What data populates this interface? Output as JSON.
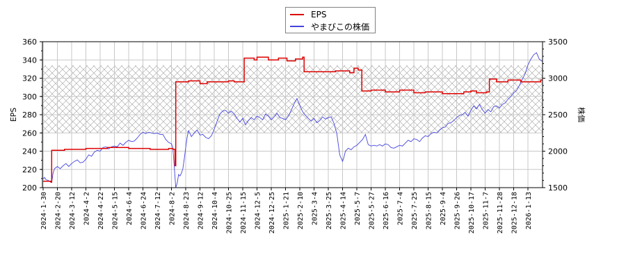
{
  "legend": {
    "items": [
      {
        "label": "EPS",
        "color": "#dd0000"
      },
      {
        "label": "やまびこの株価",
        "color": "#4444dd"
      }
    ]
  },
  "chart_data": {
    "type": "line",
    "title": "",
    "xlabel": "",
    "ylabel_left": "EPS",
    "ylabel_right": "株価",
    "ylim_left": [
      200,
      360
    ],
    "ylim_right": [
      1500,
      3500
    ],
    "yticks_left": [
      200,
      220,
      240,
      260,
      280,
      300,
      320,
      340,
      360
    ],
    "yticks_right": [
      1500,
      2000,
      2500,
      3000,
      3500
    ],
    "grid": true,
    "legend_position": "top-center",
    "shaded_band_eps": [
      260,
      334
    ],
    "x_tick_labels": [
      "2024-1-30",
      "2024-2-20",
      "2024-3-12",
      "2024-4-2",
      "2024-4-22",
      "2024-5-15",
      "2024-6-4",
      "2024-6-24",
      "2024-7-12",
      "2024-8-2",
      "2024-8-23",
      "2024-9-12",
      "2024-10-4",
      "2024-10-25",
      "2024-11-15",
      "2024-12-5",
      "2024-12-25",
      "2025-1-21",
      "2025-2-10",
      "2025-3-4",
      "2025-3-25",
      "2025-4-14",
      "2025-5-7",
      "2025-5-27",
      "2025-6-16",
      "2025-7-4",
      "2025-7-25",
      "2025-8-15",
      "2025-9-4",
      "2025-9-26",
      "2025-10-17",
      "2025-11-7",
      "2025-11-28",
      "2025-12-18",
      "2026-1-13"
    ],
    "series": [
      {
        "name": "EPS",
        "axis": "left",
        "color": "#dd0000",
        "points_x_index_eps": [
          [
            0,
            207
          ],
          [
            0.55,
            207
          ],
          [
            0.55,
            206
          ],
          [
            0.6,
            206
          ],
          [
            0.6,
            241
          ],
          [
            1.5,
            241
          ],
          [
            1.5,
            242
          ],
          [
            3,
            242
          ],
          [
            3,
            243
          ],
          [
            4.5,
            243
          ],
          [
            4.5,
            244
          ],
          [
            6,
            244
          ],
          [
            6,
            243
          ],
          [
            7.5,
            243
          ],
          [
            7.5,
            242
          ],
          [
            8.8,
            242
          ],
          [
            8.8,
            243
          ],
          [
            9.1,
            243
          ],
          [
            9.1,
            242
          ],
          [
            9.25,
            242
          ],
          [
            9.25,
            224
          ],
          [
            9.3,
            224
          ],
          [
            9.3,
            316
          ],
          [
            10.2,
            316
          ],
          [
            10.2,
            317
          ],
          [
            11,
            317
          ],
          [
            11,
            314
          ],
          [
            11.5,
            314
          ],
          [
            11.5,
            316
          ],
          [
            13,
            316
          ],
          [
            13,
            317
          ],
          [
            13.4,
            317
          ],
          [
            13.4,
            316
          ],
          [
            14.1,
            316
          ],
          [
            14.1,
            342
          ],
          [
            14.8,
            342
          ],
          [
            14.8,
            340
          ],
          [
            15.0,
            340
          ],
          [
            15.0,
            343
          ],
          [
            15.8,
            343
          ],
          [
            15.8,
            340
          ],
          [
            16.5,
            340
          ],
          [
            16.5,
            342
          ],
          [
            17.1,
            342
          ],
          [
            17.1,
            339
          ],
          [
            17.7,
            339
          ],
          [
            17.7,
            341
          ],
          [
            18.2,
            341
          ],
          [
            18.2,
            343
          ],
          [
            18.3,
            343
          ],
          [
            18.3,
            327
          ],
          [
            20.5,
            327
          ],
          [
            20.5,
            328
          ],
          [
            21.5,
            328
          ],
          [
            21.5,
            326
          ],
          [
            21.8,
            326
          ],
          [
            21.8,
            331
          ],
          [
            22.1,
            331
          ],
          [
            22.1,
            329
          ],
          [
            22.35,
            329
          ],
          [
            22.35,
            306
          ],
          [
            23,
            306
          ],
          [
            23,
            307
          ],
          [
            24,
            307
          ],
          [
            24,
            305
          ],
          [
            25,
            305
          ],
          [
            25,
            307
          ],
          [
            26,
            307
          ],
          [
            26,
            304
          ],
          [
            26.8,
            304
          ],
          [
            26.8,
            305
          ],
          [
            28,
            305
          ],
          [
            28,
            303
          ],
          [
            29.5,
            303
          ],
          [
            29.5,
            305
          ],
          [
            30,
            305
          ],
          [
            30,
            306
          ],
          [
            30.4,
            306
          ],
          [
            30.4,
            304
          ],
          [
            31.1,
            304
          ],
          [
            31.1,
            305
          ],
          [
            31.3,
            305
          ],
          [
            31.3,
            319
          ],
          [
            31.8,
            319
          ],
          [
            31.8,
            316
          ],
          [
            32.6,
            316
          ],
          [
            32.6,
            318
          ],
          [
            33.5,
            318
          ],
          [
            33.5,
            316
          ],
          [
            34.9,
            316
          ],
          [
            34.9,
            318
          ],
          [
            35.1,
            318
          ]
        ]
      },
      {
        "name": "やまびこの株価",
        "axis": "right",
        "color": "#4444dd",
        "points_x_index_price": [
          [
            0,
            1620
          ],
          [
            0.1,
            1640
          ],
          [
            0.2,
            1610
          ],
          [
            0.35,
            1600
          ],
          [
            0.5,
            1580
          ],
          [
            0.6,
            1570
          ],
          [
            0.7,
            1700
          ],
          [
            0.8,
            1760
          ],
          [
            1.0,
            1790
          ],
          [
            1.2,
            1760
          ],
          [
            1.4,
            1800
          ],
          [
            1.6,
            1830
          ],
          [
            1.8,
            1790
          ],
          [
            2.0,
            1830
          ],
          [
            2.2,
            1860
          ],
          [
            2.4,
            1880
          ],
          [
            2.6,
            1840
          ],
          [
            2.8,
            1850
          ],
          [
            3.0,
            1890
          ],
          [
            3.2,
            1950
          ],
          [
            3.4,
            1930
          ],
          [
            3.6,
            1990
          ],
          [
            3.8,
            2010
          ],
          [
            4.0,
            2000
          ],
          [
            4.2,
            2050
          ],
          [
            4.4,
            2060
          ],
          [
            4.6,
            2030
          ],
          [
            4.8,
            2060
          ],
          [
            5.0,
            2070
          ],
          [
            5.2,
            2060
          ],
          [
            5.4,
            2110
          ],
          [
            5.6,
            2080
          ],
          [
            5.8,
            2120
          ],
          [
            6.0,
            2150
          ],
          [
            6.2,
            2130
          ],
          [
            6.4,
            2140
          ],
          [
            6.6,
            2180
          ],
          [
            6.8,
            2230
          ],
          [
            7.0,
            2260
          ],
          [
            7.2,
            2240
          ],
          [
            7.4,
            2260
          ],
          [
            7.6,
            2250
          ],
          [
            7.8,
            2240
          ],
          [
            8.0,
            2250
          ],
          [
            8.2,
            2230
          ],
          [
            8.4,
            2230
          ],
          [
            8.6,
            2160
          ],
          [
            8.8,
            2120
          ],
          [
            9.0,
            2100
          ],
          [
            9.1,
            2050
          ],
          [
            9.2,
            1780
          ],
          [
            9.3,
            1500
          ],
          [
            9.4,
            1560
          ],
          [
            9.5,
            1680
          ],
          [
            9.6,
            1660
          ],
          [
            9.7,
            1700
          ],
          [
            9.8,
            1760
          ],
          [
            9.9,
            1900
          ],
          [
            10.0,
            2050
          ],
          [
            10.1,
            2190
          ],
          [
            10.2,
            2280
          ],
          [
            10.4,
            2200
          ],
          [
            10.6,
            2250
          ],
          [
            10.8,
            2290
          ],
          [
            11.0,
            2220
          ],
          [
            11.2,
            2230
          ],
          [
            11.4,
            2190
          ],
          [
            11.6,
            2170
          ],
          [
            11.8,
            2210
          ],
          [
            12.0,
            2300
          ],
          [
            12.2,
            2410
          ],
          [
            12.4,
            2510
          ],
          [
            12.6,
            2550
          ],
          [
            12.8,
            2560
          ],
          [
            13.0,
            2520
          ],
          [
            13.2,
            2550
          ],
          [
            13.4,
            2510
          ],
          [
            13.6,
            2450
          ],
          [
            13.8,
            2400
          ],
          [
            14.0,
            2450
          ],
          [
            14.2,
            2360
          ],
          [
            14.4,
            2420
          ],
          [
            14.6,
            2460
          ],
          [
            14.8,
            2430
          ],
          [
            15.0,
            2480
          ],
          [
            15.2,
            2460
          ],
          [
            15.4,
            2430
          ],
          [
            15.6,
            2510
          ],
          [
            15.8,
            2480
          ],
          [
            16.0,
            2430
          ],
          [
            16.2,
            2470
          ],
          [
            16.4,
            2520
          ],
          [
            16.6,
            2460
          ],
          [
            16.8,
            2450
          ],
          [
            17.0,
            2430
          ],
          [
            17.2,
            2480
          ],
          [
            17.4,
            2560
          ],
          [
            17.6,
            2650
          ],
          [
            17.8,
            2720
          ],
          [
            18.0,
            2630
          ],
          [
            18.2,
            2540
          ],
          [
            18.4,
            2490
          ],
          [
            18.6,
            2450
          ],
          [
            18.8,
            2410
          ],
          [
            19.0,
            2450
          ],
          [
            19.2,
            2390
          ],
          [
            19.4,
            2420
          ],
          [
            19.6,
            2470
          ],
          [
            19.8,
            2440
          ],
          [
            20.0,
            2460
          ],
          [
            20.2,
            2470
          ],
          [
            20.4,
            2380
          ],
          [
            20.6,
            2240
          ],
          [
            20.8,
            1950
          ],
          [
            21.0,
            1860
          ],
          [
            21.1,
            1920
          ],
          [
            21.2,
            2000
          ],
          [
            21.4,
            2040
          ],
          [
            21.6,
            2020
          ],
          [
            21.8,
            2060
          ],
          [
            22.0,
            2080
          ],
          [
            22.2,
            2120
          ],
          [
            22.4,
            2160
          ],
          [
            22.6,
            2230
          ],
          [
            22.8,
            2090
          ],
          [
            23.0,
            2070
          ],
          [
            23.2,
            2080
          ],
          [
            23.4,
            2070
          ],
          [
            23.6,
            2090
          ],
          [
            23.8,
            2070
          ],
          [
            24.0,
            2100
          ],
          [
            24.2,
            2090
          ],
          [
            24.4,
            2050
          ],
          [
            24.6,
            2040
          ],
          [
            24.8,
            2060
          ],
          [
            25.0,
            2080
          ],
          [
            25.2,
            2070
          ],
          [
            25.4,
            2110
          ],
          [
            25.6,
            2150
          ],
          [
            25.8,
            2130
          ],
          [
            26.0,
            2170
          ],
          [
            26.2,
            2160
          ],
          [
            26.4,
            2130
          ],
          [
            26.6,
            2180
          ],
          [
            26.8,
            2210
          ],
          [
            27.0,
            2200
          ],
          [
            27.2,
            2240
          ],
          [
            27.4,
            2260
          ],
          [
            27.6,
            2250
          ],
          [
            27.8,
            2290
          ],
          [
            28.0,
            2320
          ],
          [
            28.2,
            2330
          ],
          [
            28.4,
            2380
          ],
          [
            28.6,
            2390
          ],
          [
            28.8,
            2420
          ],
          [
            29.0,
            2460
          ],
          [
            29.2,
            2490
          ],
          [
            29.4,
            2500
          ],
          [
            29.6,
            2530
          ],
          [
            29.8,
            2480
          ],
          [
            30.0,
            2560
          ],
          [
            30.2,
            2620
          ],
          [
            30.4,
            2580
          ],
          [
            30.6,
            2640
          ],
          [
            30.8,
            2570
          ],
          [
            31.0,
            2520
          ],
          [
            31.2,
            2570
          ],
          [
            31.4,
            2540
          ],
          [
            31.6,
            2610
          ],
          [
            31.8,
            2620
          ],
          [
            32.0,
            2590
          ],
          [
            32.2,
            2640
          ],
          [
            32.4,
            2660
          ],
          [
            32.6,
            2710
          ],
          [
            32.8,
            2750
          ],
          [
            33.0,
            2800
          ],
          [
            33.2,
            2830
          ],
          [
            33.4,
            2900
          ],
          [
            33.6,
            2980
          ],
          [
            33.8,
            3060
          ],
          [
            34.0,
            3180
          ],
          [
            34.2,
            3260
          ],
          [
            34.4,
            3320
          ],
          [
            34.6,
            3350
          ],
          [
            34.8,
            3260
          ],
          [
            35.0,
            3230
          ],
          [
            35.1,
            3210
          ]
        ]
      }
    ]
  }
}
